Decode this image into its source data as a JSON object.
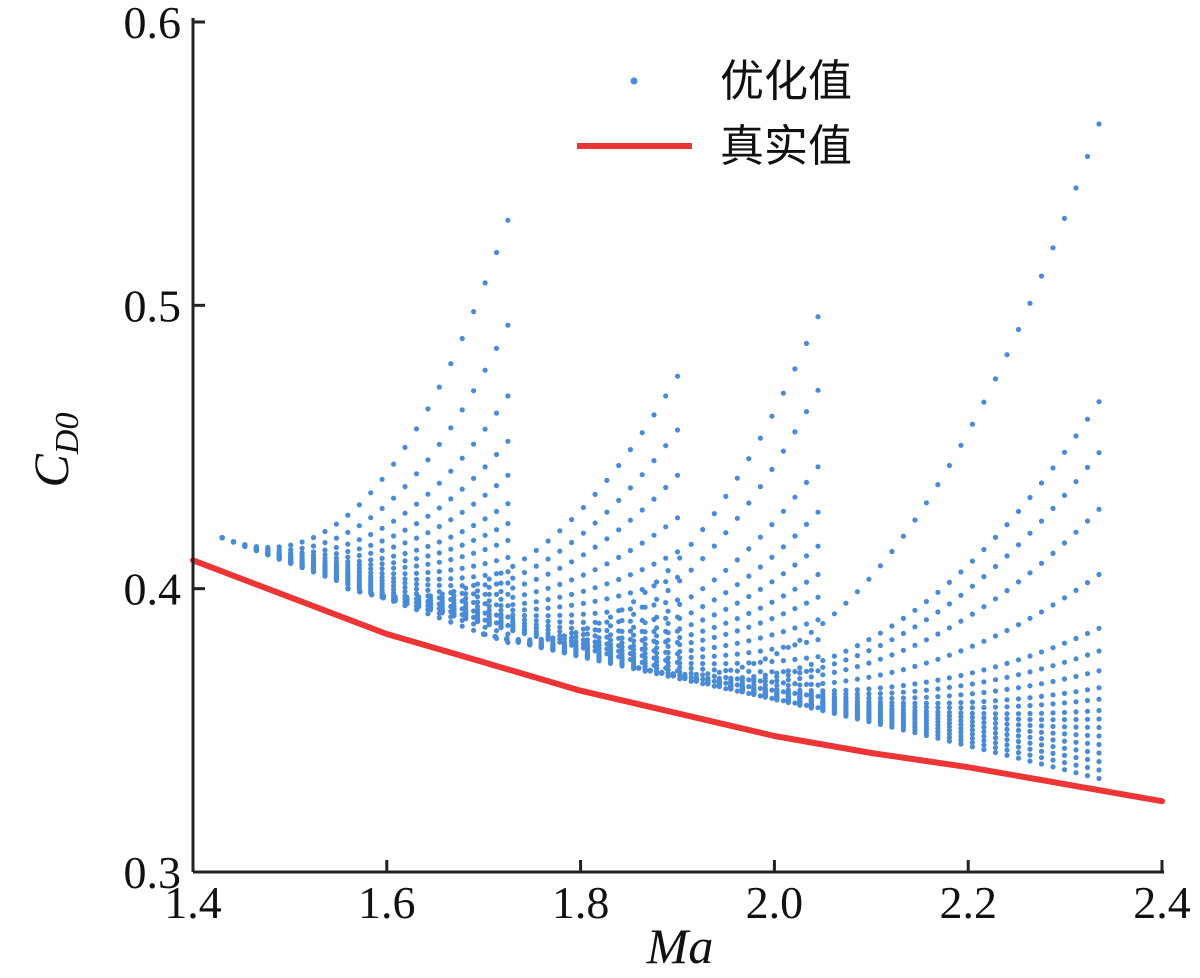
{
  "chart_data": {
    "type": "scatter",
    "title": "",
    "xlabel": "Ma",
    "ylabel": "C",
    "ylabel_sub": "D0",
    "xlim": [
      1.4,
      2.4
    ],
    "ylim": [
      0.3,
      0.6
    ],
    "xticks": [
      "1.4",
      "1.6",
      "1.8",
      "2.0",
      "2.2",
      "2.4"
    ],
    "yticks": [
      "0.3",
      "0.4",
      "0.5",
      "0.6"
    ],
    "grid": false,
    "legend_position": "top-right",
    "colors": {
      "scatter": "#4a8bd8",
      "line": "#ee3535",
      "axis": "#222222"
    },
    "series": [
      {
        "name": "优化值",
        "kind": "scatter",
        "segments": [
          {
            "x_start": 1.43,
            "x_end": 1.725,
            "base": [
              0.418,
              0.38
            ],
            "ends": [
              0.381,
              0.384,
              0.387,
              0.39,
              0.394,
              0.398,
              0.402,
              0.406,
              0.411,
              0.417,
              0.423,
              0.43,
              0.44,
              0.452,
              0.468,
              0.493,
              0.53
            ]
          },
          {
            "x_start": 1.56,
            "x_end": 1.9,
            "base": [
              0.4,
              0.37
            ],
            "ends": [
              0.371,
              0.374,
              0.377,
              0.381,
              0.385,
              0.39,
              0.396,
              0.404,
              0.413,
              0.425,
              0.44,
              0.456,
              0.475
            ]
          },
          {
            "x_start": 1.7,
            "x_end": 2.045,
            "base": [
              0.384,
              0.356
            ],
            "ends": [
              0.358,
              0.362,
              0.366,
              0.371,
              0.376,
              0.382,
              0.389,
              0.397,
              0.405,
              0.415,
              0.427,
              0.443,
              0.47,
              0.496
            ]
          },
          {
            "x_start": 1.86,
            "x_end": 2.335,
            "base": [
              0.372,
              0.335
            ],
            "ends": [
              0.333,
              0.336,
              0.339,
              0.342,
              0.345,
              0.348,
              0.351,
              0.354,
              0.357,
              0.361,
              0.365,
              0.371,
              0.378,
              0.386,
              0.405,
              0.428,
              0.448,
              0.466,
              0.564
            ]
          }
        ]
      },
      {
        "name": "真实值",
        "kind": "line",
        "x": [
          1.4,
          1.5,
          1.6,
          1.7,
          1.8,
          1.9,
          2.0,
          2.1,
          2.2,
          2.3,
          2.4
        ],
        "y": [
          0.41,
          0.397,
          0.384,
          0.374,
          0.364,
          0.356,
          0.348,
          0.342,
          0.337,
          0.331,
          0.325
        ]
      }
    ]
  }
}
